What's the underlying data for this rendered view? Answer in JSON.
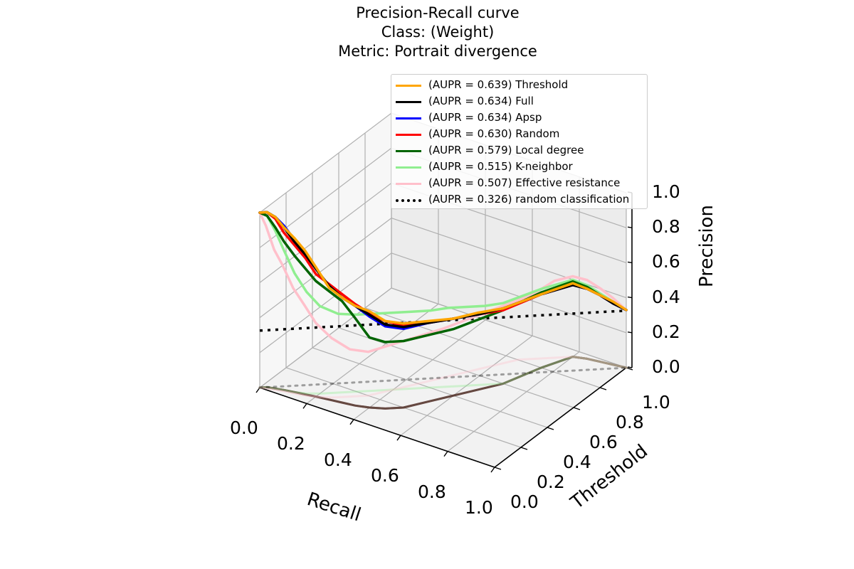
{
  "chart_data": {
    "type": "line",
    "projection": "3d",
    "title": [
      "Precision-Recall curve",
      "Class: (Weight)",
      "Metric: Portrait divergence"
    ],
    "xlabel": "Recall",
    "ylabel": "Threshold",
    "zlabel": "Precision",
    "xlim": [
      0,
      1
    ],
    "ylim": [
      0,
      1
    ],
    "zlim": [
      0,
      1
    ],
    "x_ticks": [
      "0.0",
      "0.2",
      "0.4",
      "0.6",
      "0.8",
      "1.0"
    ],
    "y_ticks": [
      "0.0",
      "0.2",
      "0.4",
      "0.6",
      "0.8",
      "1.0"
    ],
    "z_ticks": [
      "0.0",
      "0.2",
      "0.4",
      "0.6",
      "0.8",
      "1.0"
    ],
    "grid": true,
    "legend_position": "upper-right",
    "series": [
      {
        "name": "(AUPR = 0.639) Threshold",
        "color": "#ffa500",
        "style": "solid",
        "recall": [
          0.0,
          0.02,
          0.05,
          0.08,
          0.12,
          0.16,
          0.2,
          0.25,
          0.3,
          0.35,
          0.4,
          0.45,
          0.5,
          0.55,
          0.6,
          0.65,
          0.7,
          0.75,
          0.8,
          0.85,
          0.9,
          0.95,
          1.0
        ],
        "precision": [
          1.0,
          1.0,
          0.98,
          0.93,
          0.88,
          0.82,
          0.74,
          0.64,
          0.6,
          0.57,
          0.55,
          0.5,
          0.48,
          0.46,
          0.44,
          0.44,
          0.43,
          0.42,
          0.42,
          0.4,
          0.38,
          0.36,
          0.33
        ],
        "threshold": [
          0.0,
          0.02,
          0.03,
          0.04,
          0.05,
          0.06,
          0.07,
          0.08,
          0.09,
          0.1,
          0.12,
          0.15,
          0.2,
          0.3,
          0.4,
          0.5,
          0.6,
          0.8,
          0.95,
          0.97,
          0.98,
          0.99,
          1.0
        ]
      },
      {
        "name": "(AUPR = 0.634) Full",
        "color": "#000000",
        "style": "solid",
        "recall": [
          0.0,
          0.02,
          0.05,
          0.08,
          0.12,
          0.16,
          0.2,
          0.25,
          0.3,
          0.35,
          0.4,
          0.45,
          0.5,
          0.55,
          0.6,
          0.65,
          0.7,
          0.75,
          0.8,
          0.85,
          0.9,
          0.95,
          1.0
        ],
        "precision": [
          1.0,
          1.0,
          0.98,
          0.93,
          0.86,
          0.8,
          0.73,
          0.65,
          0.6,
          0.57,
          0.53,
          0.48,
          0.46,
          0.45,
          0.44,
          0.43,
          0.43,
          0.42,
          0.41,
          0.4,
          0.38,
          0.35,
          0.33
        ],
        "threshold": [
          0.0,
          0.02,
          0.03,
          0.04,
          0.05,
          0.06,
          0.07,
          0.08,
          0.09,
          0.1,
          0.12,
          0.15,
          0.2,
          0.3,
          0.4,
          0.5,
          0.6,
          0.8,
          0.95,
          0.97,
          0.98,
          0.99,
          1.0
        ]
      },
      {
        "name": "(AUPR = 0.634) Apsp",
        "color": "#0000ff",
        "style": "solid",
        "recall": [
          0.0,
          0.02,
          0.05,
          0.08,
          0.12,
          0.16,
          0.2,
          0.25,
          0.3,
          0.35,
          0.4,
          0.45,
          0.5,
          0.55,
          0.6,
          0.65,
          0.7,
          0.75,
          0.8,
          0.85,
          0.9,
          0.95,
          1.0
        ],
        "precision": [
          1.0,
          1.0,
          0.98,
          0.94,
          0.87,
          0.81,
          0.73,
          0.65,
          0.6,
          0.57,
          0.52,
          0.47,
          0.45,
          0.45,
          0.44,
          0.43,
          0.43,
          0.42,
          0.41,
          0.4,
          0.38,
          0.35,
          0.33
        ],
        "threshold": [
          0.0,
          0.02,
          0.03,
          0.04,
          0.05,
          0.06,
          0.07,
          0.08,
          0.09,
          0.1,
          0.12,
          0.15,
          0.2,
          0.3,
          0.4,
          0.5,
          0.6,
          0.8,
          0.95,
          0.97,
          0.98,
          0.99,
          1.0
        ]
      },
      {
        "name": "(AUPR = 0.630) Random",
        "color": "#ff0000",
        "style": "solid",
        "recall": [
          0.0,
          0.02,
          0.05,
          0.08,
          0.12,
          0.16,
          0.2,
          0.25,
          0.3,
          0.35,
          0.4,
          0.45,
          0.5,
          0.55,
          0.6,
          0.65,
          0.7,
          0.75,
          0.8,
          0.85,
          0.9,
          0.95,
          1.0
        ],
        "precision": [
          1.0,
          1.0,
          0.97,
          0.9,
          0.84,
          0.78,
          0.7,
          0.66,
          0.62,
          0.58,
          0.54,
          0.5,
          0.47,
          0.45,
          0.44,
          0.43,
          0.42,
          0.42,
          0.41,
          0.4,
          0.38,
          0.35,
          0.33
        ],
        "threshold": [
          0.0,
          0.02,
          0.03,
          0.04,
          0.05,
          0.06,
          0.07,
          0.08,
          0.09,
          0.1,
          0.12,
          0.15,
          0.2,
          0.3,
          0.4,
          0.5,
          0.6,
          0.8,
          0.95,
          0.97,
          0.98,
          0.99,
          1.0
        ]
      },
      {
        "name": "(AUPR = 0.579) Local degree",
        "color": "#006400",
        "style": "solid",
        "recall": [
          0.0,
          0.02,
          0.05,
          0.08,
          0.12,
          0.16,
          0.2,
          0.25,
          0.3,
          0.35,
          0.4,
          0.45,
          0.5,
          0.55,
          0.6,
          0.65,
          0.7,
          0.75,
          0.8,
          0.85,
          0.9,
          0.95,
          1.0
        ],
        "precision": [
          1.0,
          0.98,
          0.92,
          0.85,
          0.78,
          0.72,
          0.66,
          0.62,
          0.58,
          0.5,
          0.4,
          0.38,
          0.38,
          0.38,
          0.38,
          0.4,
          0.42,
          0.43,
          0.43,
          0.41,
          0.38,
          0.35,
          0.33
        ],
        "threshold": [
          0.0,
          0.02,
          0.03,
          0.04,
          0.05,
          0.06,
          0.07,
          0.08,
          0.09,
          0.1,
          0.12,
          0.15,
          0.2,
          0.3,
          0.4,
          0.5,
          0.6,
          0.8,
          0.95,
          0.97,
          0.98,
          0.99,
          1.0
        ]
      },
      {
        "name": "(AUPR = 0.515) K-neighbor",
        "color": "#90ee90",
        "style": "solid",
        "recall": [
          0.0,
          0.02,
          0.05,
          0.08,
          0.12,
          0.16,
          0.2,
          0.25,
          0.3,
          0.35,
          0.4,
          0.45,
          0.5,
          0.55,
          0.6,
          0.65,
          0.7,
          0.75,
          0.8,
          0.85,
          0.9,
          0.95,
          1.0
        ],
        "precision": [
          1.0,
          0.98,
          0.9,
          0.8,
          0.68,
          0.58,
          0.5,
          0.45,
          0.44,
          0.44,
          0.44,
          0.44,
          0.44,
          0.45,
          0.45,
          0.45,
          0.46,
          0.45,
          0.44,
          0.42,
          0.39,
          0.36,
          0.33
        ],
        "threshold": [
          0.0,
          0.02,
          0.03,
          0.04,
          0.05,
          0.07,
          0.1,
          0.15,
          0.2,
          0.25,
          0.3,
          0.35,
          0.4,
          0.45,
          0.5,
          0.55,
          0.6,
          0.8,
          0.95,
          0.97,
          0.98,
          0.99,
          1.0
        ]
      },
      {
        "name": "(AUPR = 0.507) Effective resistance",
        "color": "#ffc0cb",
        "style": "solid",
        "recall": [
          0.0,
          0.02,
          0.05,
          0.08,
          0.12,
          0.16,
          0.2,
          0.25,
          0.3,
          0.35,
          0.4,
          0.45,
          0.5,
          0.55,
          0.6,
          0.65,
          0.7,
          0.75,
          0.8,
          0.85,
          0.9,
          0.95,
          1.0
        ],
        "precision": [
          1.0,
          0.93,
          0.8,
          0.72,
          0.6,
          0.52,
          0.42,
          0.34,
          0.27,
          0.25,
          0.26,
          0.27,
          0.28,
          0.3,
          0.32,
          0.34,
          0.38,
          0.44,
          0.46,
          0.45,
          0.42,
          0.38,
          0.33
        ],
        "threshold": [
          0.0,
          0.01,
          0.02,
          0.03,
          0.04,
          0.05,
          0.07,
          0.1,
          0.15,
          0.2,
          0.3,
          0.4,
          0.5,
          0.6,
          0.7,
          0.8,
          0.85,
          0.9,
          0.95,
          0.97,
          0.98,
          0.99,
          1.0
        ]
      },
      {
        "name": "(AUPR = 0.326) random classification",
        "color": "#000000",
        "style": "dotted",
        "recall": [
          0.0,
          1.0
        ],
        "precision": [
          0.326,
          0.326
        ],
        "threshold": [
          0.0,
          1.0
        ]
      }
    ]
  }
}
